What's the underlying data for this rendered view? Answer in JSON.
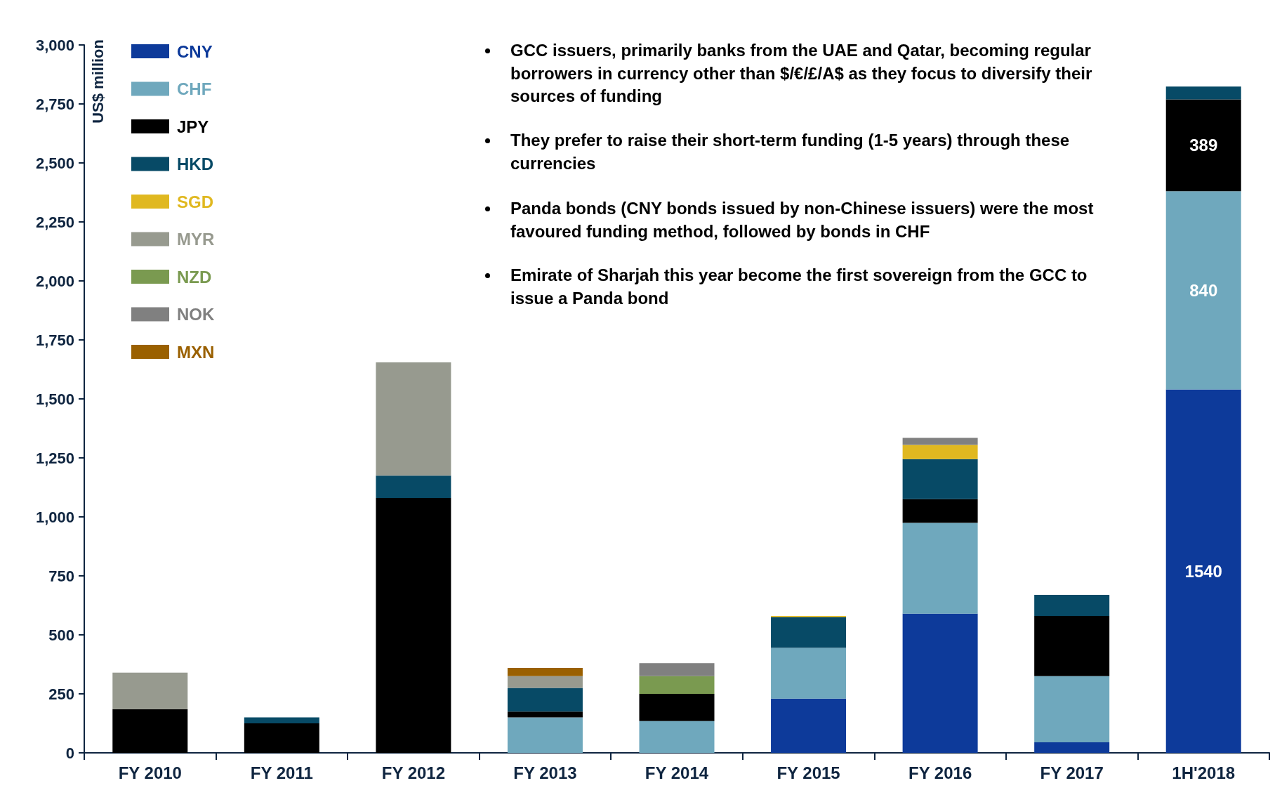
{
  "chart_data": {
    "type": "bar",
    "stacked": true,
    "ylabel": "US$ million",
    "categories": [
      "FY 2010",
      "FY 2011",
      "FY 2012",
      "FY 2013",
      "FY 2014",
      "FY 2015",
      "FY 2016",
      "FY 2017",
      "1H'2018"
    ],
    "series": [
      {
        "name": "CNY",
        "color": "#0d3a9a",
        "values": [
          null,
          null,
          null,
          null,
          null,
          230,
          590,
          45,
          1540
        ],
        "value_labels": [
          null,
          null,
          null,
          null,
          null,
          null,
          null,
          null,
          "1540"
        ]
      },
      {
        "name": "CHF",
        "color": "#6fa8bd",
        "values": [
          null,
          null,
          null,
          150,
          135,
          215,
          385,
          280,
          840
        ],
        "value_labels": [
          null,
          null,
          null,
          null,
          null,
          null,
          null,
          null,
          "840"
        ]
      },
      {
        "name": "JPY",
        "color": "#000000",
        "values": [
          185,
          125,
          1080,
          25,
          115,
          null,
          100,
          255,
          389
        ],
        "value_labels": [
          null,
          null,
          null,
          null,
          null,
          null,
          null,
          null,
          "389"
        ]
      },
      {
        "name": "HKD",
        "color": "#074a66",
        "values": [
          null,
          25,
          95,
          100,
          null,
          130,
          170,
          90,
          55
        ]
      },
      {
        "name": "SGD",
        "color": "#e0b820",
        "values": [
          null,
          null,
          null,
          null,
          null,
          5,
          60,
          null,
          null
        ]
      },
      {
        "name": "MYR",
        "color": "#979a8f",
        "values": [
          155,
          null,
          480,
          50,
          null,
          null,
          null,
          null,
          null
        ]
      },
      {
        "name": "NZD",
        "color": "#7a9a50",
        "values": [
          null,
          null,
          null,
          null,
          75,
          null,
          null,
          null,
          null
        ]
      },
      {
        "name": "NOK",
        "color": "#808080",
        "values": [
          null,
          null,
          null,
          null,
          55,
          null,
          30,
          null,
          null
        ]
      },
      {
        "name": "MXN",
        "color": "#9a6000",
        "values": [
          null,
          null,
          null,
          35,
          null,
          null,
          null,
          null,
          null
        ]
      }
    ],
    "ylim": [
      0,
      3000
    ],
    "yticks": [
      {
        "value": 0,
        "label": "0"
      },
      {
        "value": 250,
        "label": "250"
      },
      {
        "value": 500,
        "label": "500"
      },
      {
        "value": 750,
        "label": "750"
      },
      {
        "value": 1000,
        "label": "1,000"
      },
      {
        "value": 1250,
        "label": "1,250"
      },
      {
        "value": 1500,
        "label": "1,500"
      },
      {
        "value": 1750,
        "label": "1,750"
      },
      {
        "value": 2000,
        "label": "2,000"
      },
      {
        "value": 2250,
        "label": "2,250"
      },
      {
        "value": 2500,
        "label": "2,500"
      },
      {
        "value": 2750,
        "label": "2,750"
      },
      {
        "value": 3000,
        "label": "3,000"
      }
    ],
    "grid": false,
    "legend": "top left",
    "annotations": [
      "GCC issuers, primarily banks from the UAE and Qatar, becoming regular borrowers in currency other than $/€/£/A$ as they focus to diversify their sources of funding",
      "They prefer to raise their short-term funding (1-5 years) through these currencies",
      "Panda bonds (CNY bonds issued by non-Chinese issuers) were the most favoured funding method, followed by bonds in CHF",
      "Emirate of Sharjah this year become the first sovereign from the GCC to issue a Panda bond"
    ]
  }
}
